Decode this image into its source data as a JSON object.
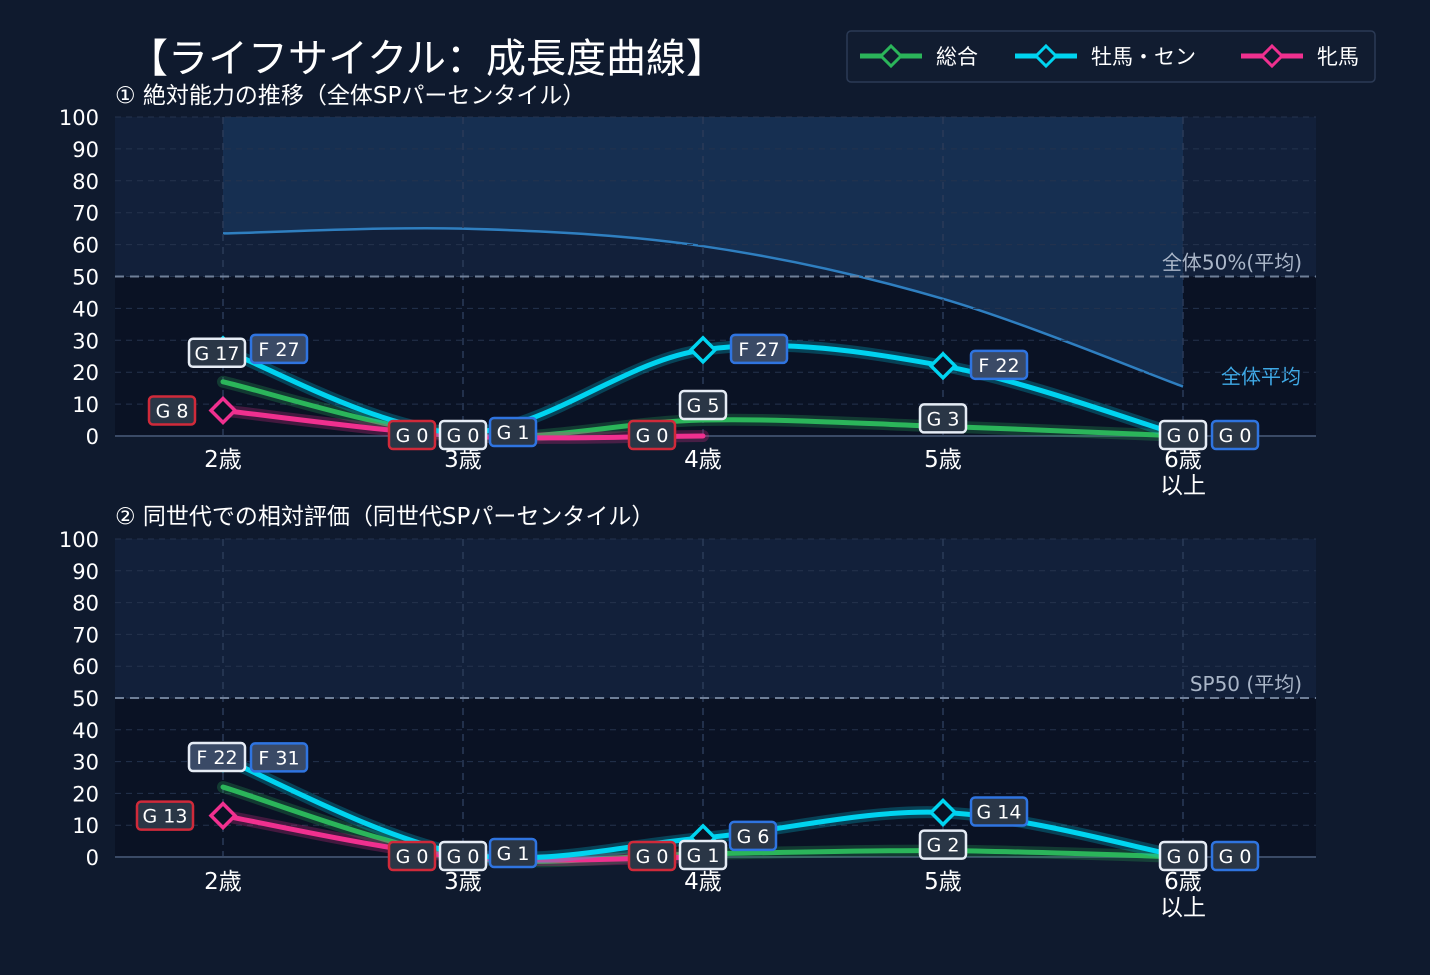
{
  "title": "【ライフサイクル：成長度曲線】",
  "legend": [
    {
      "name": "総合",
      "color": "#2bb55a"
    },
    {
      "name": "牡馬・セン",
      "color": "#00d4f0"
    },
    {
      "name": "牝馬",
      "color": "#f0308f"
    }
  ],
  "chart_data": [
    {
      "type": "line",
      "title": "① 絶対能力の推移（全体SPパーセンタイル）",
      "categories": [
        [
          "2歳"
        ],
        [
          "3歳"
        ],
        [
          "4歳"
        ],
        [
          "5歳"
        ],
        [
          "6歳",
          "以上"
        ]
      ],
      "ylim": [
        0,
        100
      ],
      "yticks": [
        "0",
        "10",
        "20",
        "30",
        "40",
        "50",
        "60",
        "70",
        "80",
        "90",
        "100"
      ],
      "reference_label": "全体50%(平均)",
      "reference_value": 50,
      "band": {
        "label": "全体平均",
        "values": [
          63.5,
          65,
          59.5,
          43,
          15.5
        ]
      },
      "series": [
        {
          "name": "総合",
          "color": "#2bb55a",
          "values": [
            17,
            0,
            5,
            3,
            0
          ],
          "labels": [
            "G 17",
            "G 0",
            "G 5",
            "G 3",
            "G 0"
          ]
        },
        {
          "name": "牡馬・セン",
          "color": "#00d4f0",
          "values": [
            27,
            1,
            27,
            22,
            0
          ],
          "labels": [
            "F 27",
            "G 1",
            "F 27",
            "F 22",
            "G 0"
          ]
        },
        {
          "name": "牝馬",
          "color": "#f0308f",
          "values": [
            8,
            0,
            0,
            null,
            null
          ],
          "labels": [
            "G 8",
            "G 0",
            "G 0",
            "",
            ""
          ]
        }
      ]
    },
    {
      "type": "line",
      "title": "② 同世代での相対評価（同世代SPパーセンタイル）",
      "categories": [
        [
          "2歳"
        ],
        [
          "3歳"
        ],
        [
          "4歳"
        ],
        [
          "5歳"
        ],
        [
          "6歳",
          "以上"
        ]
      ],
      "ylim": [
        0,
        100
      ],
      "yticks": [
        "0",
        "10",
        "20",
        "30",
        "40",
        "50",
        "60",
        "70",
        "80",
        "90",
        "100"
      ],
      "reference_label": "SP50 (平均)",
      "reference_value": 50,
      "series": [
        {
          "name": "総合",
          "color": "#2bb55a",
          "values": [
            22,
            0,
            1,
            2,
            0
          ],
          "labels": [
            "F 22",
            "G 0",
            "G 1",
            "G 2",
            "G 0"
          ]
        },
        {
          "name": "牡馬・セン",
          "color": "#00d4f0",
          "values": [
            31,
            1,
            6,
            14,
            0
          ],
          "labels": [
            "F 31",
            "G 1",
            "G 6",
            "G 14",
            "G 0"
          ]
        },
        {
          "name": "牝馬",
          "color": "#f0308f",
          "values": [
            13,
            0,
            0,
            null,
            null
          ],
          "labels": [
            "G 13",
            "G 0",
            "G 0",
            "",
            ""
          ]
        }
      ]
    }
  ]
}
